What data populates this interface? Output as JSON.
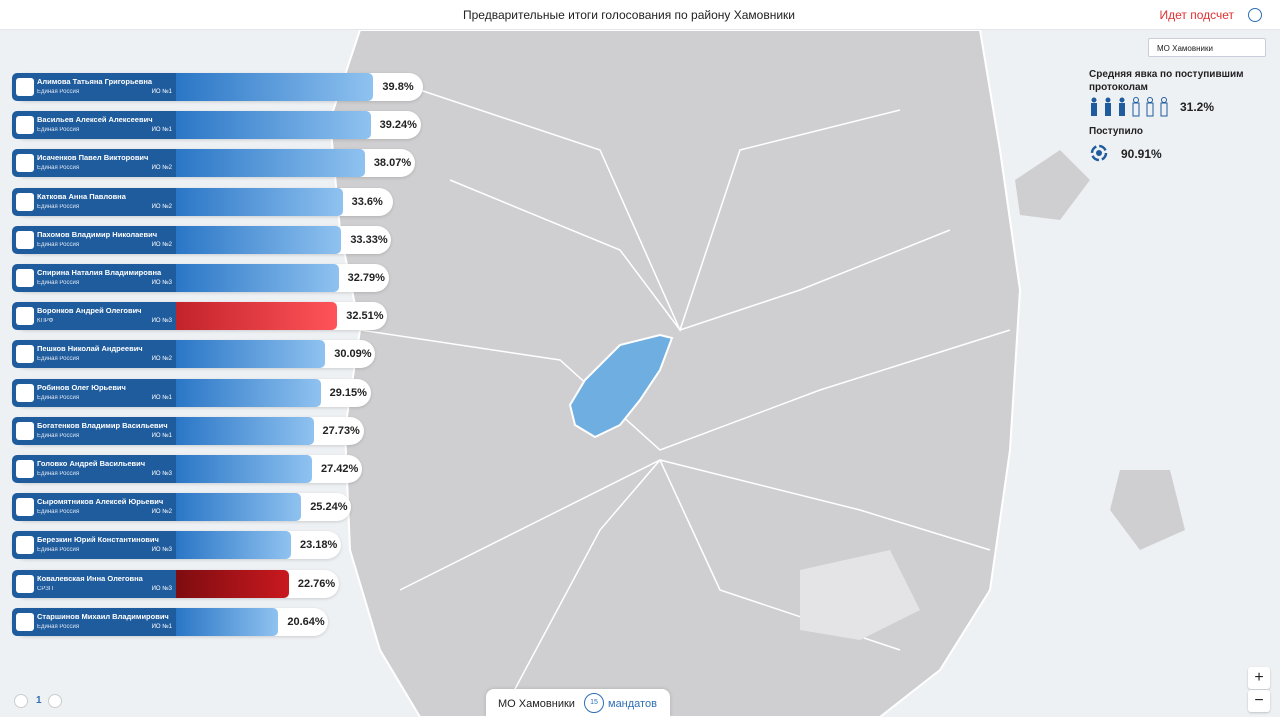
{
  "header": {
    "title": "Предварительные итоги голосования по району Хамовники",
    "status": "Идет подсчет"
  },
  "district_select": "МО Хамовники",
  "turnout": {
    "label": "Средняя явка по поступившим протоколам",
    "value": "31.2%"
  },
  "received": {
    "label": "Поступило",
    "value": "90.91%"
  },
  "candidates": [
    {
      "name": "Алимова Татьяна Григорьевна",
      "party": "Единая Россия",
      "district": "ИО №1",
      "value": 39.8,
      "value_label": "39.8%",
      "color": [
        "#2a76c6",
        "#8fc2f0"
      ]
    },
    {
      "name": "Васильев Алексей Алексеевич",
      "party": "Единая Россия",
      "district": "ИО №1",
      "value": 39.24,
      "value_label": "39.24%",
      "color": [
        "#2a76c6",
        "#8fc2f0"
      ]
    },
    {
      "name": "Исаченков Павел Викторович",
      "party": "Единая Россия",
      "district": "ИО №2",
      "value": 38.07,
      "value_label": "38.07%",
      "color": [
        "#2a76c6",
        "#8fc2f0"
      ]
    },
    {
      "name": "Каткова Анна Павловна",
      "party": "Единая Россия",
      "district": "ИО №2",
      "value": 33.6,
      "value_label": "33.6%",
      "color": [
        "#2a76c6",
        "#8fc2f0"
      ]
    },
    {
      "name": "Пахомов Владимир Николаевич",
      "party": "Единая Россия",
      "district": "ИО №2",
      "value": 33.33,
      "value_label": "33.33%",
      "color": [
        "#2a76c6",
        "#8fc2f0"
      ]
    },
    {
      "name": "Спирина Наталия Владимировна",
      "party": "Единая Россия",
      "district": "ИО №3",
      "value": 32.79,
      "value_label": "32.79%",
      "color": [
        "#2a76c6",
        "#8fc2f0"
      ]
    },
    {
      "name": "Воронков Андрей Олегович",
      "party": "КПРФ",
      "district": "ИО №3",
      "value": 32.51,
      "value_label": "32.51%",
      "color": [
        "#c3232b",
        "#ff5459"
      ]
    },
    {
      "name": "Пешков Николай Андреевич",
      "party": "Единая Россия",
      "district": "ИО №2",
      "value": 30.09,
      "value_label": "30.09%",
      "color": [
        "#2a76c6",
        "#8fc2f0"
      ]
    },
    {
      "name": "Робинов Олег Юрьевич",
      "party": "Единая Россия",
      "district": "ИО №1",
      "value": 29.15,
      "value_label": "29.15%",
      "color": [
        "#2a76c6",
        "#8fc2f0"
      ]
    },
    {
      "name": "Богатенков Владимир Васильевич",
      "party": "Единая Россия",
      "district": "ИО №1",
      "value": 27.73,
      "value_label": "27.73%",
      "color": [
        "#2a76c6",
        "#8fc2f0"
      ]
    },
    {
      "name": "Головко Андрей Васильевич",
      "party": "Единая Россия",
      "district": "ИО №3",
      "value": 27.42,
      "value_label": "27.42%",
      "color": [
        "#2a76c6",
        "#8fc2f0"
      ]
    },
    {
      "name": "Сыромятников Алексей Юрьевич",
      "party": "Единая Россия",
      "district": "ИО №2",
      "value": 25.24,
      "value_label": "25.24%",
      "color": [
        "#2a76c6",
        "#8fc2f0"
      ]
    },
    {
      "name": "Березкин Юрий Константинович",
      "party": "Единая Россия",
      "district": "ИО №3",
      "value": 23.18,
      "value_label": "23.18%",
      "color": [
        "#2a76c6",
        "#8fc2f0"
      ]
    },
    {
      "name": "Ковалевская Инна Олеговна",
      "party": "СРЗП",
      "district": "ИО №3",
      "value": 22.76,
      "value_label": "22.76%",
      "color": [
        "#7e0c10",
        "#c8191f"
      ]
    },
    {
      "name": "Старшинов Михаил Владимирович",
      "party": "Единая Россия",
      "district": "ИО №1",
      "value": 20.64,
      "value_label": "20.64%",
      "color": [
        "#2a76c6",
        "#8fc2f0"
      ]
    }
  ],
  "pagination": {
    "page": "1"
  },
  "footer": {
    "district": "МО Хамовники",
    "mandates": "15",
    "mandates_label": "мандатов"
  },
  "zoom": {
    "in": "+",
    "out": "−"
  }
}
